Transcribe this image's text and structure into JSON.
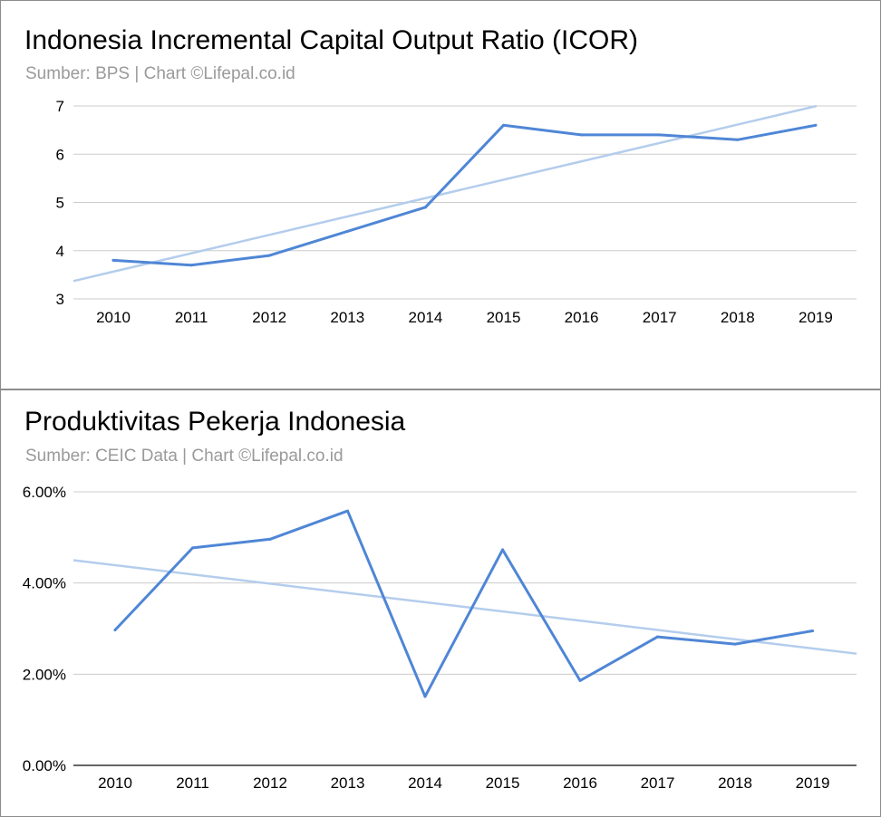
{
  "chart_data": [
    {
      "type": "line",
      "title": "Indonesia Incremental Capital Output Ratio (ICOR)",
      "subtitle": "Sumber: BPS |  Chart ©Lifepal.co.id",
      "categories": [
        "2010",
        "2011",
        "2012",
        "2013",
        "2014",
        "2015",
        "2016",
        "2017",
        "2018",
        "2019"
      ],
      "series": [
        {
          "values": [
            3.8,
            3.7,
            3.9,
            4.4,
            4.9,
            6.6,
            6.4,
            6.4,
            6.3,
            6.6
          ],
          "color": "#4f86d6"
        }
      ],
      "trendline": {
        "start": 3.37,
        "end": 7.0,
        "color": "#b4cdec"
      },
      "ylim": [
        3,
        7
      ],
      "yticks": [
        3,
        4,
        5,
        6,
        7
      ],
      "ytick_labels": [
        "3",
        "4",
        "5",
        "6",
        "7"
      ],
      "grid": true
    },
    {
      "type": "line",
      "title": "Produktivitas Pekerja Indonesia",
      "subtitle": "Sumber: CEIC Data |  Chart ©Lifepal.co.id",
      "categories": [
        "2010",
        "2011",
        "2012",
        "2013",
        "2014",
        "2015",
        "2016",
        "2017",
        "2018",
        "2019"
      ],
      "series": [
        {
          "values": [
            2.97,
            4.77,
            4.96,
            5.58,
            1.51,
            4.73,
            1.86,
            2.82,
            2.66,
            2.95
          ],
          "color": "#4f86d6"
        }
      ],
      "trendline": {
        "start": 4.5,
        "end": 2.45,
        "color": "#b4cdec"
      },
      "ylim": [
        0,
        6
      ],
      "yticks": [
        0,
        2,
        4,
        6
      ],
      "ytick_labels": [
        "0.00%",
        "2.00%",
        "4.00%",
        "6.00%"
      ],
      "grid": true
    }
  ]
}
